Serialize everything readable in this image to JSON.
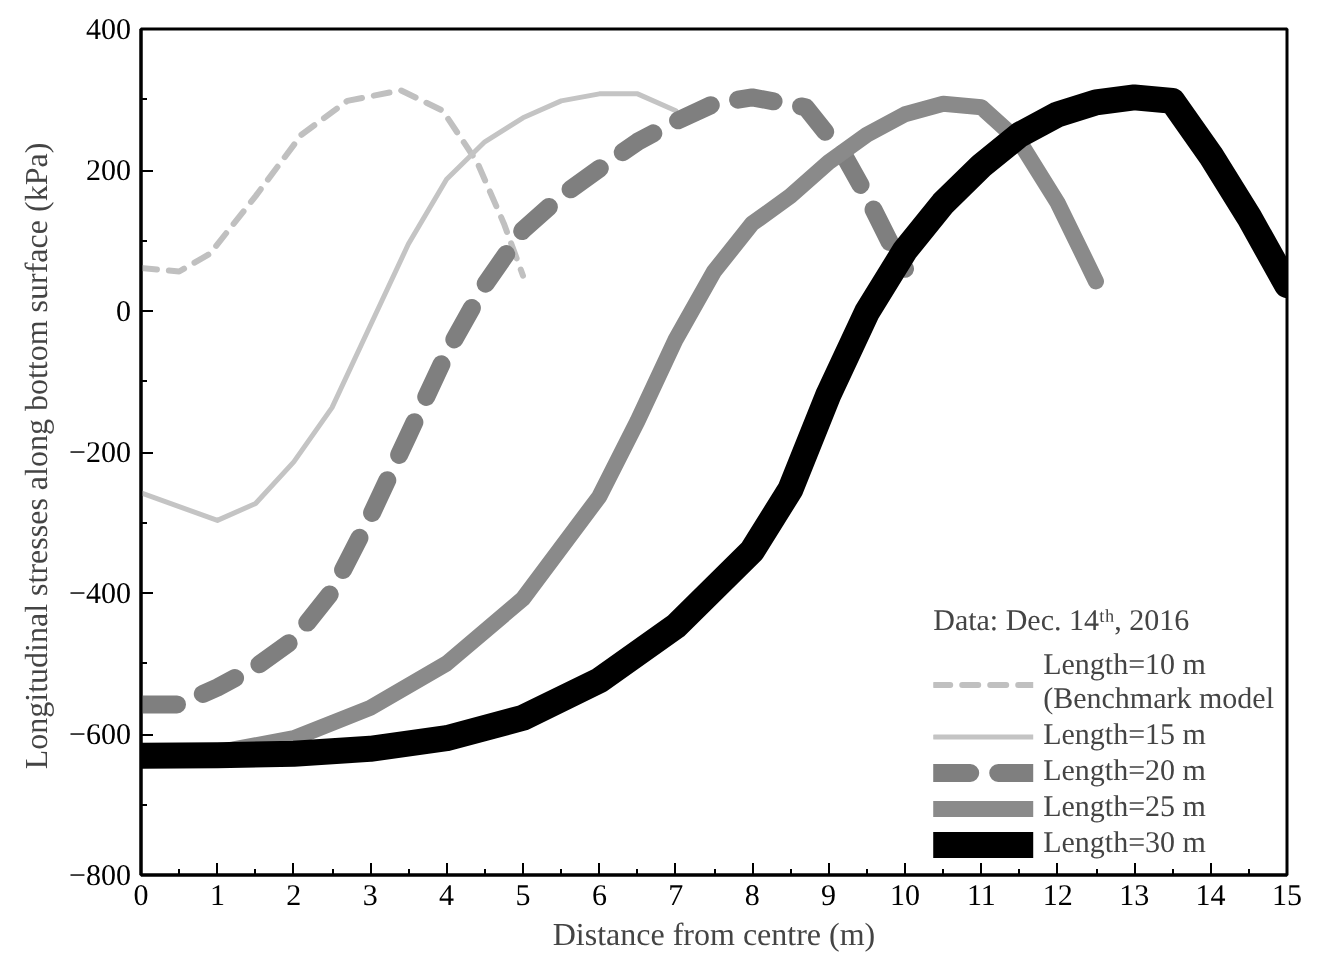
{
  "chart_data": {
    "type": "line",
    "xlabel": "Distance from centre (m)",
    "ylabel": "Longitudinal stresses along bottom surface  (kPa)",
    "legend_title": "Data: Dec. 14ᵗʰ, 2016",
    "xlim": [
      0,
      15
    ],
    "ylim": [
      -800,
      400
    ],
    "xticks": [
      0,
      1,
      2,
      3,
      4,
      5,
      6,
      7,
      8,
      9,
      10,
      11,
      12,
      13,
      14,
      15
    ],
    "yticks": [
      -800,
      -600,
      -400,
      -200,
      0,
      200,
      400
    ],
    "grid": false,
    "legend": "bottom right",
    "marker": "none",
    "series": [
      {
        "name": "Length=10 m\n(Benchmark model",
        "color": "#c0c0c0",
        "line_style": "dashed",
        "x": [
          0,
          0.5,
          0.9,
          1.5,
          2.1,
          2.7,
          3.4,
          3.95,
          4.4,
          4.75,
          5
        ],
        "values": [
          61,
          56,
          81,
          163,
          250,
          298,
          313,
          284,
          211,
          124,
          50
        ]
      },
      {
        "name": "Length=15 m",
        "color": "#c4c4c4",
        "line_style": "solid",
        "x": [
          0,
          1,
          1.5,
          2,
          2.5,
          3,
          3.5,
          4,
          4.5,
          5,
          5.5,
          6,
          6.5,
          7
        ],
        "values": [
          -258,
          -297,
          -273,
          -214,
          -137,
          -21,
          95,
          187,
          240,
          274,
          298,
          308,
          308,
          284
        ]
      },
      {
        "name": "Length=20 m",
        "color": "#7f7f7f",
        "line_style": "dashed",
        "x": [
          0,
          0.5,
          1,
          1.5,
          2,
          2.5,
          3,
          3.5,
          4,
          4.5,
          5,
          5.5,
          6,
          6.5,
          7,
          7.5,
          8,
          8.7,
          9.2,
          9.5,
          9.9,
          10
        ],
        "values": [
          -558,
          -558,
          -534,
          -505,
          -466,
          -398,
          -292,
          -176,
          -60,
          37,
          115,
          163,
          202,
          240,
          269,
          294,
          303,
          289,
          221,
          163,
          76,
          60
        ]
      },
      {
        "name": "Length=25 m",
        "color": "#8a8a8a",
        "line_style": "solid",
        "x": [
          0,
          1,
          2,
          3,
          4,
          5,
          6,
          6.5,
          7,
          7.5,
          8,
          8.5,
          9,
          9.5,
          10,
          10.5,
          11,
          11.5,
          12,
          12.5
        ],
        "values": [
          -626,
          -626,
          -606,
          -563,
          -500,
          -408,
          -263,
          -156,
          -40,
          56,
          124,
          163,
          211,
          250,
          279,
          294,
          289,
          240,
          153,
          42
        ]
      },
      {
        "name": "Length=30 m",
        "color": "#000000",
        "line_style": "solid",
        "x": [
          0,
          1,
          2,
          3,
          4,
          5,
          6,
          7,
          8,
          8.5,
          9,
          9.5,
          10,
          10.5,
          11,
          11.5,
          12,
          12.5,
          13,
          13.5,
          14,
          14.5,
          15
        ],
        "values": [
          -631,
          -630,
          -628,
          -621,
          -606,
          -577,
          -524,
          -447,
          -340,
          -253,
          -118,
          -2,
          86,
          153,
          206,
          250,
          279,
          296,
          303,
          298,
          221,
          134,
          37
        ]
      }
    ]
  }
}
